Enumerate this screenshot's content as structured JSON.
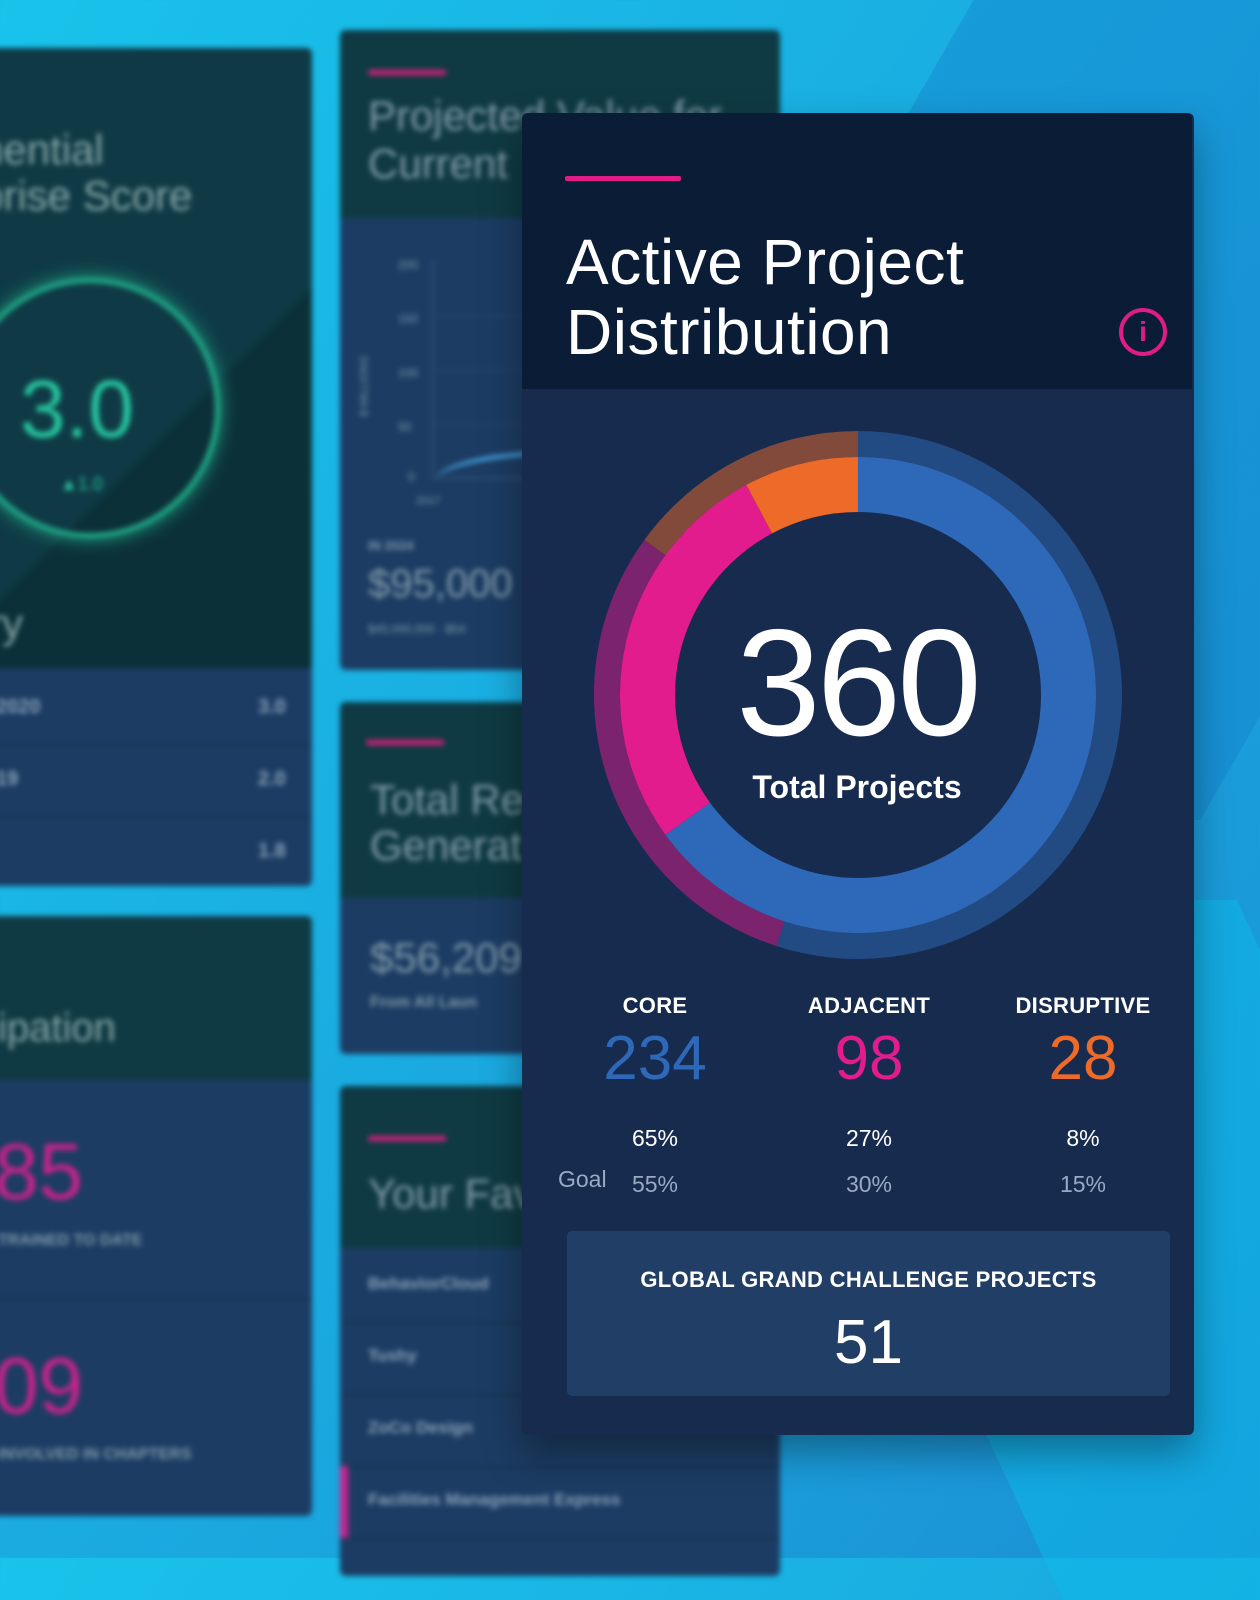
{
  "background": {
    "card_score": {
      "title_line1": "nential",
      "title_line2": "prise Score",
      "score": "3.0",
      "delta": "▲1.0",
      "subtitle": "ry",
      "rows": [
        {
          "label": "2020",
          "value": "3.0"
        },
        {
          "label": "19",
          "value": "2.0"
        },
        {
          "label": "",
          "value": "1.8"
        }
      ]
    },
    "card_value": {
      "title_line1": "Projected Value for",
      "title_line2": "Current",
      "y_ticks": [
        "200",
        "150",
        "100",
        "50",
        "0"
      ],
      "y_label": "$ MILLIONS",
      "x_tick": "2017",
      "kpi_label": "IN 2024",
      "kpi_value": "$95,000",
      "kpi_sub": "$45,000,000 · $54"
    },
    "card_revenue": {
      "title_line1": "Total Re",
      "title_line2": "Generat",
      "value": "$56,209",
      "sub": "From All Laun"
    },
    "card_participation": {
      "title": "ipation",
      "stat1_value": "85",
      "stat1_label": "TRAINED TO DATE",
      "stat2_value": "09",
      "stat2_label": "INVOLVED IN CHAPTERS"
    },
    "card_favorites": {
      "title": "Your Fav",
      "items": [
        "BehaviorCloud",
        "Tushy",
        "ZoCo Design",
        "Facilities Management Express"
      ]
    }
  },
  "main_card": {
    "title_line1": "Active Project",
    "title_line2": "Distribution",
    "info_icon": "info-icon",
    "total_value": "360",
    "total_label": "Total Projects",
    "goal_label": "Goal",
    "categories": [
      {
        "label": "CORE",
        "count": "234",
        "percent": "65%",
        "goal": "55%",
        "color": "#2d69b8"
      },
      {
        "label": "ADJACENT",
        "count": "98",
        "percent": "27%",
        "goal": "30%",
        "color": "#e21c8d"
      },
      {
        "label": "DISRUPTIVE",
        "count": "28",
        "percent": "8%",
        "goal": "15%",
        "color": "#ee6a28"
      }
    ],
    "ggc_title": "GLOBAL GRAND CHALLENGE PROJECTS",
    "ggc_value": "51"
  },
  "colors": {
    "core": "#2d69b8",
    "adjacent": "#e21c8d",
    "disruptive": "#ee6a28",
    "accent": "#e01c86"
  },
  "chart_data": {
    "type": "pie",
    "title": "Active Project Distribution",
    "center_label": "360 Total Projects",
    "categories": [
      "CORE",
      "ADJACENT",
      "DISRUPTIVE"
    ],
    "values": [
      234,
      98,
      28
    ],
    "percent_actual": [
      65,
      27,
      8
    ],
    "percent_goal": [
      55,
      30,
      15
    ]
  }
}
